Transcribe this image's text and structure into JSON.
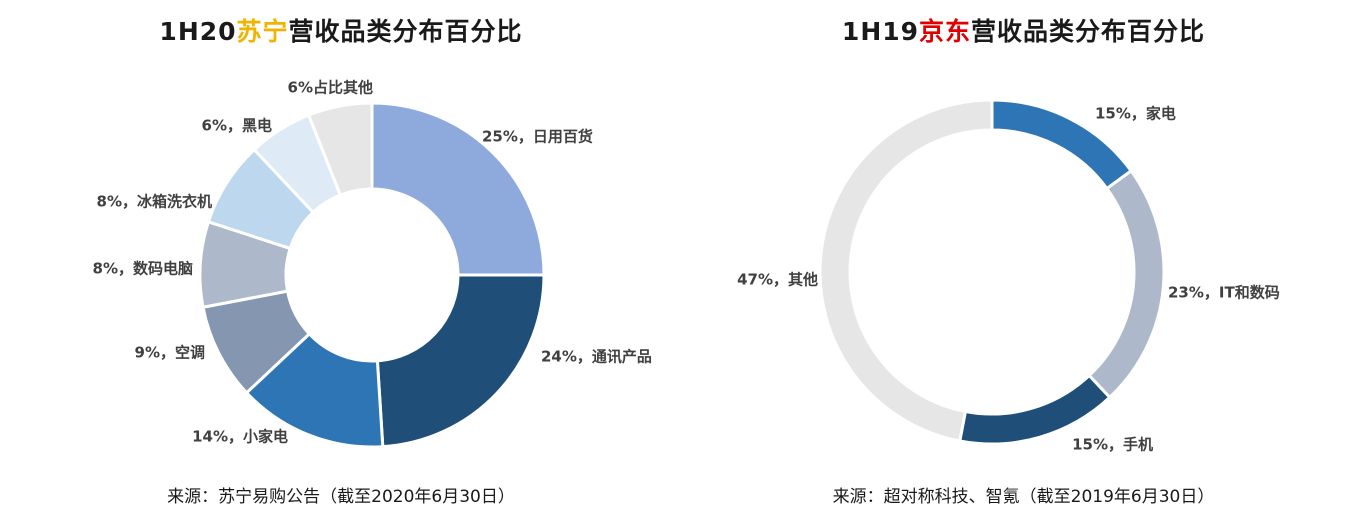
{
  "chart_data": [
    {
      "type": "pie",
      "title_prefix": "1H20",
      "title_highlight": "苏宁",
      "title_suffix": "营收品类分布百分比",
      "highlight_color": "#f0b400",
      "categories": [
        "日用百货",
        "通讯产品",
        "小家电",
        "空调",
        "数码电脑",
        "冰箱洗衣机",
        "黑电",
        "占比其他"
      ],
      "values": [
        25,
        24,
        14,
        9,
        8,
        8,
        6,
        6
      ],
      "data_labels": [
        "25%，日用百货",
        "24%，通讯产品",
        "14%，小家电",
        "9%，空调",
        "8%，数码电脑",
        "8%，冰箱洗衣机",
        "6%，黑电",
        "6%占比其他"
      ],
      "colors": [
        "#8eaadc",
        "#1f4e79",
        "#2e75b6",
        "#8496b0",
        "#adb9ca",
        "#bdd7ee",
        "#deebf7",
        "#e7e6e6"
      ],
      "source": "来源：苏宁易购公告（截至2020年6月30日）"
    },
    {
      "type": "pie",
      "title_prefix": "1H19",
      "title_highlight": "京东",
      "title_suffix": "营收品类分布百分比",
      "highlight_color": "#e00000",
      "categories": [
        "家电",
        "IT和数码",
        "手机",
        "其他"
      ],
      "values": [
        15,
        23,
        15,
        47
      ],
      "data_labels": [
        "15%，家电",
        "23%，IT和数码",
        "15%，手机",
        "47%，其他"
      ],
      "colors": [
        "#2e75b6",
        "#adb9ca",
        "#1f4e79",
        "#e7e6e6"
      ],
      "source": "来源：超对称科技、智氪（截至2019年6月30日）"
    }
  ]
}
